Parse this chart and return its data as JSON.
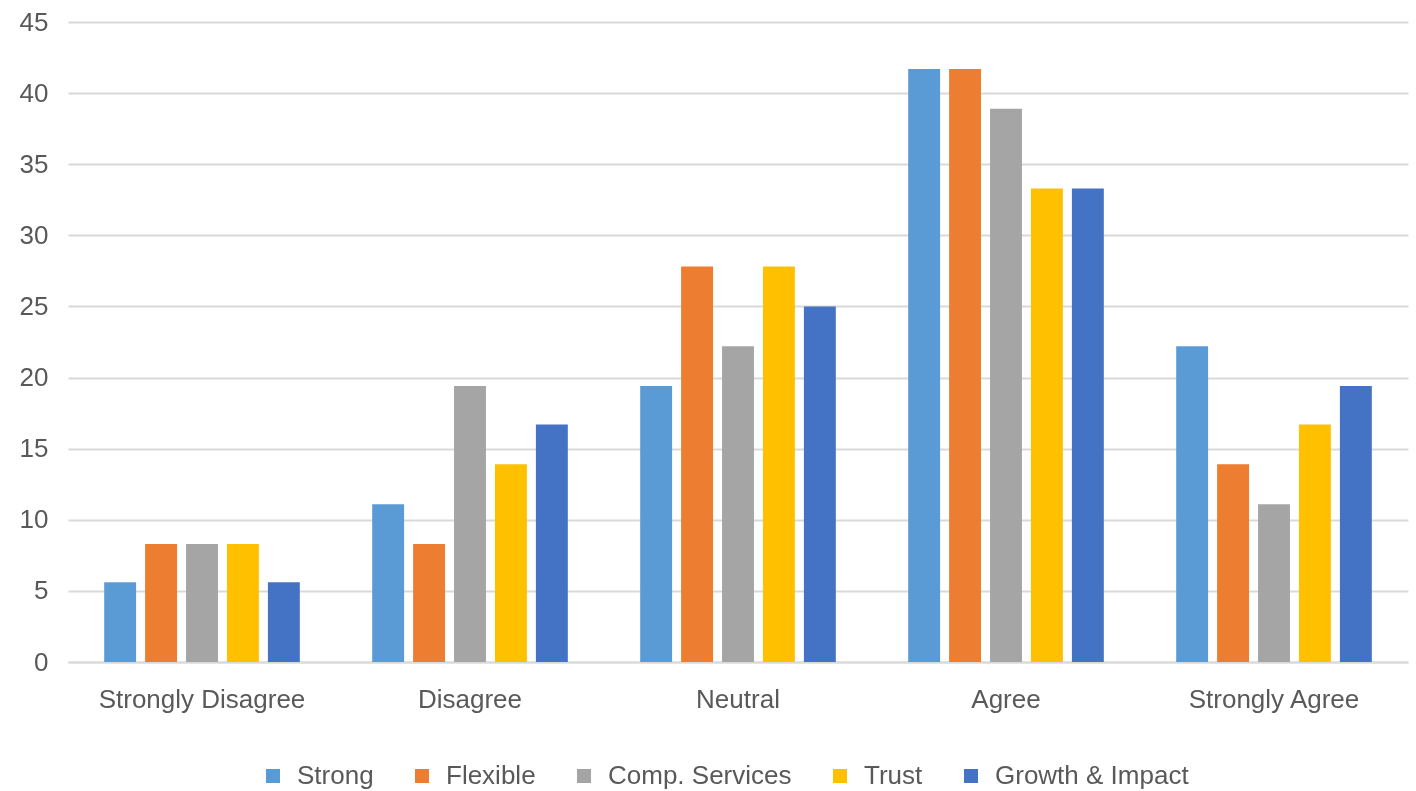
{
  "chart_data": {
    "type": "bar",
    "categories": [
      "Strongly Disagree",
      "Disagree",
      "Neutral",
      "Agree",
      "Strongly Agree"
    ],
    "series": [
      {
        "name": "Strong",
        "color": "#5b9bd5",
        "values": [
          5.6,
          11.1,
          19.4,
          41.7,
          22.2
        ]
      },
      {
        "name": "Flexible",
        "color": "#ed7d31",
        "values": [
          8.3,
          8.3,
          27.8,
          41.7,
          13.9
        ]
      },
      {
        "name": "Comp. Services",
        "color": "#a5a5a5",
        "values": [
          8.3,
          19.4,
          22.2,
          38.9,
          11.1
        ]
      },
      {
        "name": "Trust",
        "color": "#ffc000",
        "values": [
          8.3,
          13.9,
          27.8,
          33.3,
          16.7
        ]
      },
      {
        "name": "Growth & Impact",
        "color": "#4472c4",
        "values": [
          5.6,
          16.7,
          25,
          33.3,
          19.4
        ]
      }
    ],
    "ylim": [
      0,
      45
    ],
    "yticks": [
      0,
      5,
      10,
      15,
      20,
      25,
      30,
      35,
      40,
      45
    ],
    "grid": "y",
    "legend": "bottom"
  }
}
